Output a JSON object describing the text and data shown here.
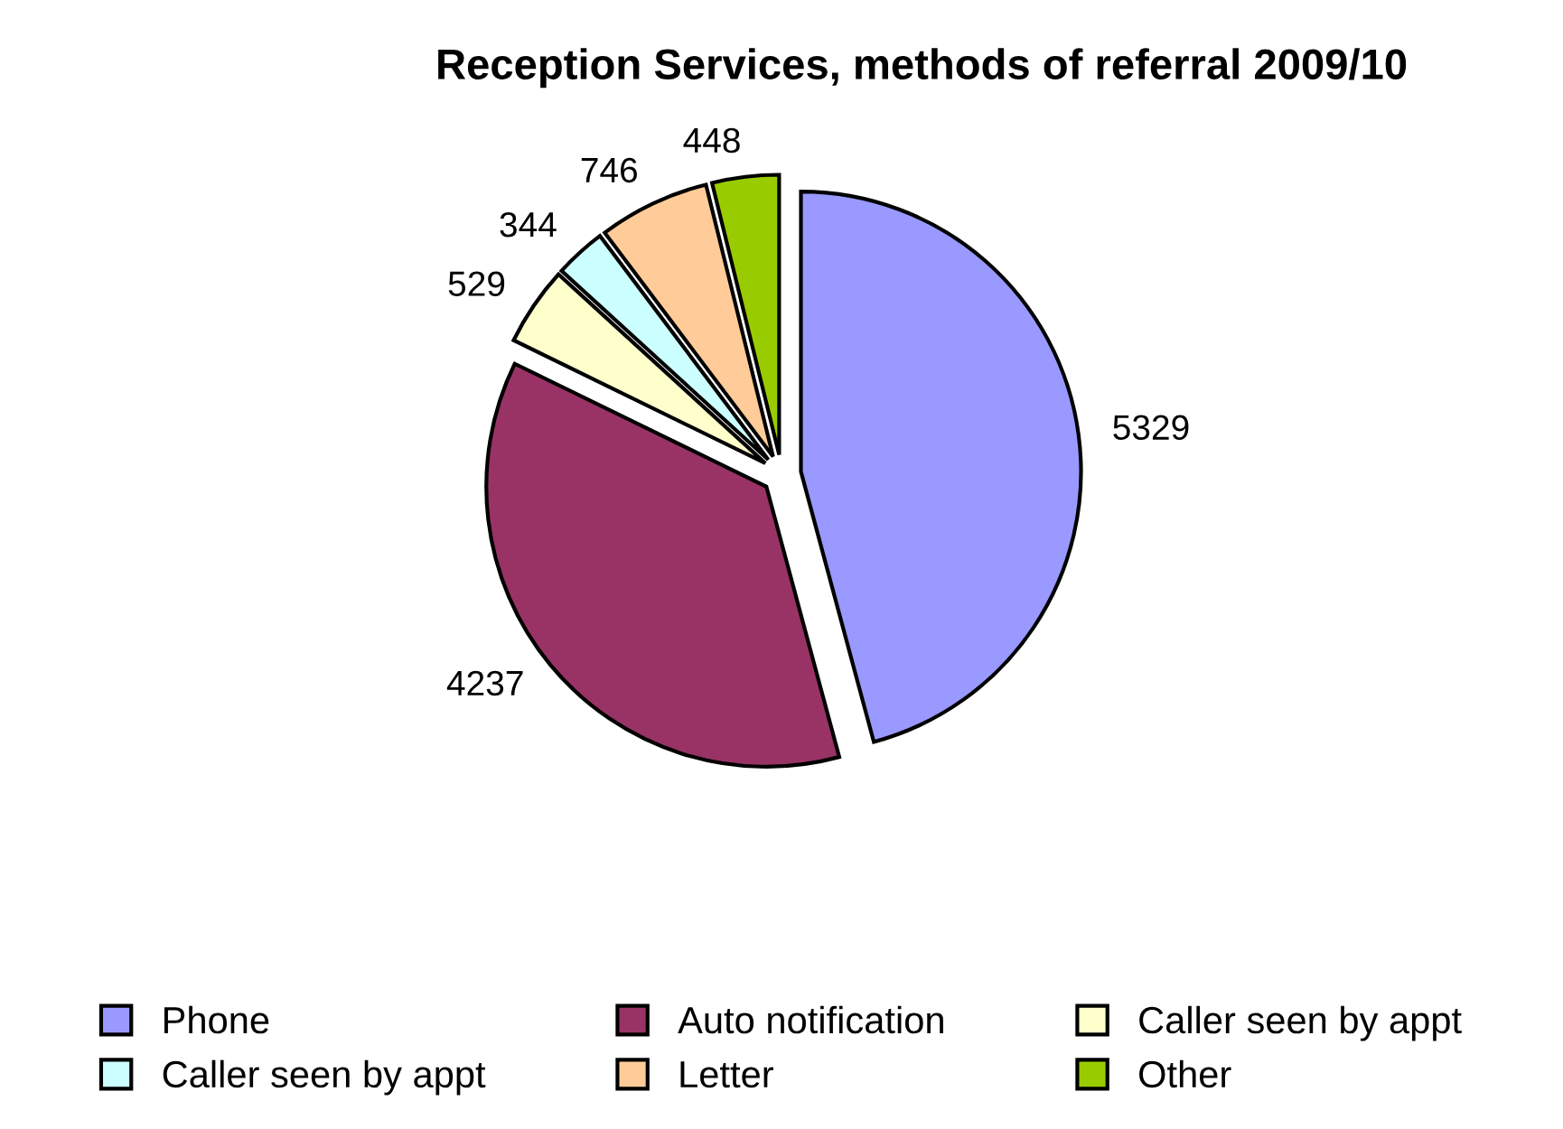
{
  "chart_data": {
    "type": "pie",
    "title": "Reception Services, methods of referral 2009/10",
    "categories": [
      "Phone",
      "Auto notification",
      "Caller seen by appt",
      "Caller seen by appt",
      "Letter",
      "Other"
    ],
    "values": [
      5329,
      4237,
      529,
      344,
      746,
      448
    ],
    "colors": [
      "#9999ff",
      "#993366",
      "#ffffcc",
      "#ccffff",
      "#ffcc99",
      "#99cc00"
    ],
    "data_labels": true,
    "legend": "bottom"
  }
}
